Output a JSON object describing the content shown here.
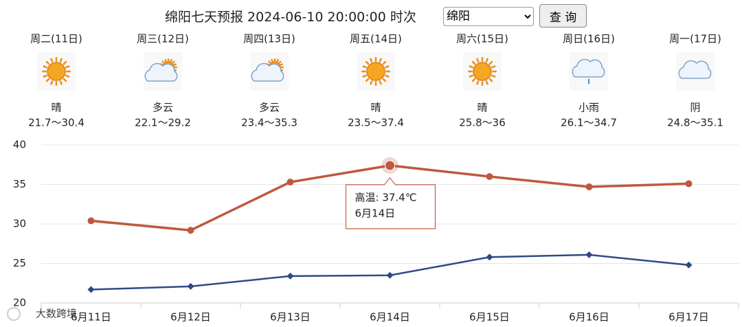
{
  "header": {
    "title": "绵阳七天预报 2024-06-10 20:00:00 时次",
    "city": "绵阳",
    "button": "查 询"
  },
  "days": [
    {
      "weekday": "周二(11日)",
      "icon": "sun",
      "condition": "晴",
      "range": "21.7～30.4"
    },
    {
      "weekday": "周三(12日)",
      "icon": "partly",
      "condition": "多云",
      "range": "22.1～29.2"
    },
    {
      "weekday": "周四(13日)",
      "icon": "partly",
      "condition": "多云",
      "range": "23.4～35.3"
    },
    {
      "weekday": "周五(14日)",
      "icon": "sun",
      "condition": "晴",
      "range": "23.5～37.4"
    },
    {
      "weekday": "周六(15日)",
      "icon": "sun",
      "condition": "晴",
      "range": "25.8～36"
    },
    {
      "weekday": "周日(16日)",
      "icon": "rain",
      "condition": "小雨",
      "range": "26.1～34.7"
    },
    {
      "weekday": "周一(17日)",
      "icon": "cloud",
      "condition": "阴",
      "range": "24.8～35.1"
    }
  ],
  "chart_data": {
    "type": "line",
    "categories": [
      "6月11日",
      "6月12日",
      "6月13日",
      "6月14日",
      "6月15日",
      "6月16日",
      "6月17日"
    ],
    "series": [
      {
        "name": "高温",
        "color": "#c0583e",
        "values": [
          30.4,
          29.2,
          35.3,
          37.4,
          36,
          34.7,
          35.1
        ]
      },
      {
        "color": "#2e4a86",
        "values": [
          21.7,
          22.1,
          23.4,
          23.5,
          25.8,
          26.1,
          24.8
        ]
      }
    ],
    "ylim": [
      20,
      40
    ],
    "yticks": [
      20,
      25,
      30,
      35,
      40
    ],
    "grid": true,
    "tooltip": {
      "text": "高温: 37.4℃",
      "date": "6月14日"
    }
  },
  "watermark": "大数跨境"
}
